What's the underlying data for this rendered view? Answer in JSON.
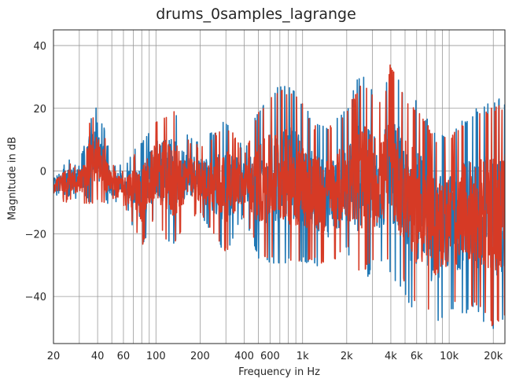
{
  "chart_data": {
    "type": "line",
    "title": "drums_0samples_lagrange",
    "xlabel": "Frequency in Hz",
    "ylabel": "Magnitude in dB",
    "xscale": "log",
    "xlim": [
      20,
      24000
    ],
    "ylim": [
      -55,
      45
    ],
    "grid": "on",
    "xticks": [
      {
        "value": 20,
        "label": "20"
      },
      {
        "value": 40,
        "label": "40"
      },
      {
        "value": 60,
        "label": "60"
      },
      {
        "value": 100,
        "label": "100"
      },
      {
        "value": 200,
        "label": "200"
      },
      {
        "value": 400,
        "label": "400"
      },
      {
        "value": 600,
        "label": "600"
      },
      {
        "value": 1000,
        "label": "1k"
      },
      {
        "value": 2000,
        "label": "2k"
      },
      {
        "value": 4000,
        "label": "4k"
      },
      {
        "value": 6000,
        "label": "6k"
      },
      {
        "value": 10000,
        "label": "10k"
      },
      {
        "value": 20000,
        "label": "20k"
      }
    ],
    "yticks": [
      {
        "value": 40,
        "label": "40"
      },
      {
        "value": 20,
        "label": "20"
      },
      {
        "value": 0,
        "label": "0"
      },
      {
        "value": -20,
        "label": "−20"
      },
      {
        "value": -40,
        "label": "−40"
      }
    ],
    "series": [
      {
        "color": "#1f77b4",
        "envelope": [
          {
            "x": 20,
            "max": 0,
            "min": -8
          },
          {
            "x": 25,
            "max": 5,
            "min": -9
          },
          {
            "x": 30,
            "max": 3,
            "min": -9
          },
          {
            "x": 35,
            "max": 17,
            "min": -10
          },
          {
            "x": 40,
            "max": 23,
            "min": -10
          },
          {
            "x": 50,
            "max": 3,
            "min": -11
          },
          {
            "x": 60,
            "max": 2,
            "min": -10
          },
          {
            "x": 80,
            "max": 10,
            "min": -25
          },
          {
            "x": 100,
            "max": 17,
            "min": -15
          },
          {
            "x": 130,
            "max": 21,
            "min": -25
          },
          {
            "x": 160,
            "max": 12,
            "min": -15
          },
          {
            "x": 200,
            "max": 9,
            "min": -14
          },
          {
            "x": 300,
            "max": 17,
            "min": -27
          },
          {
            "x": 400,
            "max": 7,
            "min": -14
          },
          {
            "x": 500,
            "max": 20,
            "min": -28
          },
          {
            "x": 700,
            "max": 28,
            "min": -30
          },
          {
            "x": 900,
            "max": 26,
            "min": -28
          },
          {
            "x": 1200,
            "max": 16,
            "min": -31
          },
          {
            "x": 1500,
            "max": 15,
            "min": -33
          },
          {
            "x": 2000,
            "max": 20,
            "min": -26
          },
          {
            "x": 2500,
            "max": 33,
            "min": -36
          },
          {
            "x": 3500,
            "max": 22,
            "min": -30
          },
          {
            "x": 4000,
            "max": 35,
            "min": -33
          },
          {
            "x": 5000,
            "max": 25,
            "min": -40
          },
          {
            "x": 6000,
            "max": 23,
            "min": -48
          },
          {
            "x": 8000,
            "max": 12,
            "min": -50
          },
          {
            "x": 10000,
            "max": 12,
            "min": -46
          },
          {
            "x": 15000,
            "max": 20,
            "min": -45
          },
          {
            "x": 20000,
            "max": 23,
            "min": -52
          },
          {
            "x": 24000,
            "max": 23,
            "min": -48
          }
        ]
      },
      {
        "color": "#d63a25",
        "envelope": [
          {
            "x": 20,
            "max": -1,
            "min": -9
          },
          {
            "x": 25,
            "max": 4,
            "min": -10
          },
          {
            "x": 30,
            "max": 2,
            "min": -10
          },
          {
            "x": 35,
            "max": 16,
            "min": -11
          },
          {
            "x": 40,
            "max": 21,
            "min": -11
          },
          {
            "x": 50,
            "max": 2,
            "min": -12
          },
          {
            "x": 60,
            "max": 1,
            "min": -11
          },
          {
            "x": 80,
            "max": 9,
            "min": -24
          },
          {
            "x": 100,
            "max": 16,
            "min": -16
          },
          {
            "x": 130,
            "max": 20,
            "min": -26
          },
          {
            "x": 160,
            "max": 11,
            "min": -16
          },
          {
            "x": 200,
            "max": 8,
            "min": -15
          },
          {
            "x": 300,
            "max": 16,
            "min": -26
          },
          {
            "x": 400,
            "max": 6,
            "min": -15
          },
          {
            "x": 500,
            "max": 19,
            "min": -27
          },
          {
            "x": 700,
            "max": 27,
            "min": -29
          },
          {
            "x": 900,
            "max": 25,
            "min": -30
          },
          {
            "x": 1200,
            "max": 15,
            "min": -29
          },
          {
            "x": 1500,
            "max": 14,
            "min": -30
          },
          {
            "x": 2000,
            "max": 19,
            "min": -25
          },
          {
            "x": 2500,
            "max": 29,
            "min": -33
          },
          {
            "x": 3500,
            "max": 21,
            "min": -28
          },
          {
            "x": 4000,
            "max": 35,
            "min": -31
          },
          {
            "x": 5000,
            "max": 23,
            "min": -36
          },
          {
            "x": 6000,
            "max": 21,
            "min": -44
          },
          {
            "x": 8000,
            "max": 11,
            "min": -47
          },
          {
            "x": 10000,
            "max": 11,
            "min": -43
          },
          {
            "x": 15000,
            "max": 18,
            "min": -43
          },
          {
            "x": 20000,
            "max": 21,
            "min": -50
          },
          {
            "x": 24000,
            "max": 21,
            "min": -46
          }
        ]
      }
    ]
  }
}
